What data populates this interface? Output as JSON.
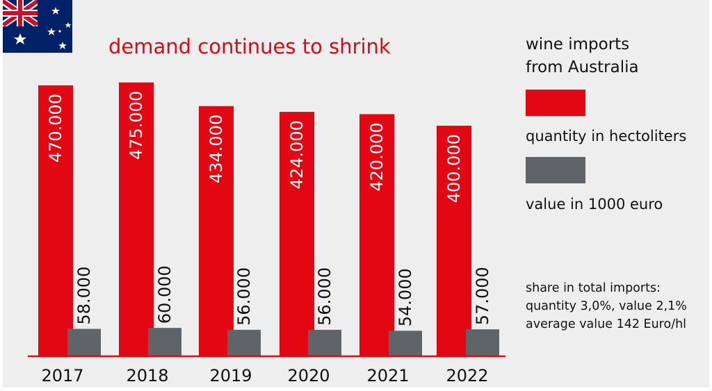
{
  "chart_data": {
    "type": "bar",
    "title": "demand continues to shrink",
    "categories": [
      "2017",
      "2018",
      "2019",
      "2020",
      "2021",
      "2022"
    ],
    "series": [
      {
        "name": "quantity in hectoliters",
        "color": "#e30613",
        "values": [
          470000,
          475000,
          434000,
          424000,
          420000,
          400000
        ],
        "labels": [
          "470.000",
          "475.000",
          "434.000",
          "424.000",
          "420.000",
          "400.000"
        ]
      },
      {
        "name": "value in 1000 euro",
        "color": "#5f6468",
        "values": [
          58000,
          60000,
          56000,
          56000,
          54000,
          57000
        ],
        "labels": [
          "58.000",
          "60.000",
          "56.000",
          "56.000",
          "54.000",
          "57.000"
        ]
      }
    ],
    "ylim": [
      0,
      500000
    ],
    "grid": false,
    "legend_position": "right"
  },
  "legend": {
    "heading_line1": "wine imports",
    "heading_line2": "from Australia"
  },
  "footnote": {
    "line1": "share in total imports:",
    "line2": "quantity 3,0%, value 2,1%",
    "line3": "average value 142 Euro/hl"
  },
  "colors": {
    "accent_red": "#e30613",
    "gray": "#5f6468",
    "background": "#eeeeee",
    "flag_blue": "#012169"
  },
  "icons": {
    "flag": "australia-flag-icon"
  }
}
